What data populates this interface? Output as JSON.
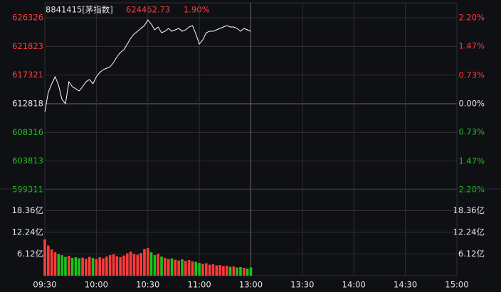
{
  "chart_data": {
    "type": "line",
    "title": "8841415[茅指数]",
    "last_price": "624462.73",
    "change": "1.90%",
    "x": [
      0,
      2,
      4,
      6,
      8,
      10,
      12,
      14,
      16,
      18,
      20,
      22,
      24,
      26,
      28,
      30,
      32,
      34,
      36,
      38,
      40,
      42,
      44,
      46,
      48,
      50,
      52,
      54,
      56,
      58,
      60,
      62,
      64,
      66,
      68,
      70,
      72,
      74,
      76,
      78,
      80,
      82,
      84,
      86,
      88,
      90,
      92,
      94,
      96,
      98,
      100,
      102,
      104,
      106,
      108,
      110,
      112,
      114,
      116,
      118,
      120
    ],
    "xlim": [
      0,
      240
    ],
    "xticks": [
      {
        "value": 0,
        "label": "09:30"
      },
      {
        "value": 30,
        "label": "10:00"
      },
      {
        "value": 60,
        "label": "10:30"
      },
      {
        "value": 90,
        "label": "11:00"
      },
      {
        "value": 120,
        "label": "13:00"
      },
      {
        "value": 150,
        "label": "13:30"
      },
      {
        "value": 180,
        "label": "14:00"
      },
      {
        "value": 210,
        "label": "14:30"
      },
      {
        "value": 240,
        "label": "15:00"
      }
    ],
    "series": [
      {
        "color": "#ffffff",
        "values": [
          611540,
          614600,
          615950,
          617060,
          615720,
          613490,
          612820,
          616280,
          615500,
          615170,
          614830,
          615500,
          616280,
          616620,
          615950,
          617060,
          617730,
          618180,
          618400,
          618620,
          619290,
          620190,
          620860,
          621300,
          622200,
          623090,
          623760,
          624200,
          624650,
          625100,
          625990,
          625320,
          624430,
          624880,
          623980,
          624200,
          624650,
          624200,
          624430,
          624650,
          624200,
          624430,
          624880,
          625100,
          623760,
          622200,
          622870,
          623980,
          624200,
          624200,
          624430,
          624650,
          624880,
          625100,
          624880,
          624880,
          624650,
          624200,
          624650,
          624430,
          624200
        ]
      }
    ],
    "ylim": [
      599311,
      626326
    ],
    "yticks": [
      599311,
      603813,
      608316,
      612818,
      617321,
      621823,
      626326
    ],
    "y2lim": [
      -2.2,
      2.2
    ],
    "y2ticks": [
      {
        "value": -2.2,
        "label": "2.20%"
      },
      {
        "value": -1.47,
        "label": "1.47%"
      },
      {
        "value": -0.73,
        "label": "0.73%"
      },
      {
        "value": 0,
        "label": "0.00%"
      },
      {
        "value": 0.73,
        "label": "0.73%"
      },
      {
        "value": 1.47,
        "label": "1.47%"
      },
      {
        "value": 2.2,
        "label": "2.20%"
      }
    ],
    "up_color": "#ff3b3b",
    "down_color": "#19c419",
    "volume": {
      "values": [
        10.2,
        8.5,
        7.4,
        6.6,
        6.1,
        5.8,
        5.3,
        5.6,
        5.0,
        5.2,
        4.9,
        5.1,
        4.8,
        5.3,
        5.0,
        4.7,
        5.2,
        4.9,
        5.4,
        5.8,
        6.0,
        5.5,
        5.2,
        5.7,
        6.3,
        6.8,
        6.1,
        5.9,
        6.4,
        7.5,
        7.8,
        6.6,
        5.8,
        6.2,
        5.4,
        5.0,
        4.7,
        4.9,
        4.5,
        4.3,
        4.6,
        4.2,
        4.4,
        4.0,
        3.9,
        3.6,
        3.3,
        3.5,
        3.1,
        3.2,
        2.9,
        3.0,
        2.7,
        2.8,
        2.5,
        2.6,
        2.3,
        2.4,
        2.2,
        2.0,
        2.3
      ],
      "ylim": [
        0,
        24.48
      ],
      "yticks": [
        {
          "value": 6.12,
          "label": "6.12亿"
        },
        {
          "value": 12.24,
          "label": "12.24亿"
        },
        {
          "value": 18.36,
          "label": "18.36亿"
        }
      ]
    }
  }
}
